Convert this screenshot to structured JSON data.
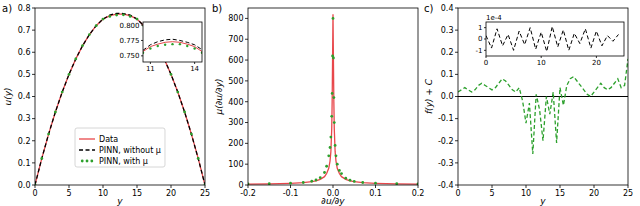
{
  "chart_data": [
    {
      "type": "line",
      "title": "a)",
      "x_label": "y",
      "y_label": "u(y)",
      "xlim": [
        0,
        25
      ],
      "xticks": [
        0,
        5,
        10,
        15,
        20,
        25
      ],
      "ylim": [
        0,
        0.8
      ],
      "yticks": [
        {
          "value": 0,
          "label": "0.0"
        },
        0.1,
        0.2,
        0.3,
        0.4,
        0.5,
        0.6,
        0.7,
        0.8
      ],
      "legend": "lower center",
      "x": [
        0,
        1,
        2,
        3,
        4,
        5,
        6,
        7,
        8,
        9,
        10,
        11,
        12,
        13,
        14,
        15,
        16,
        17,
        18,
        19,
        20,
        21,
        22,
        23,
        24,
        25
      ],
      "series": [
        {
          "name": "Data",
          "color": "#e8474b",
          "line_style": "solid",
          "values": [
            0,
            0.12,
            0.23,
            0.33,
            0.42,
            0.5,
            0.57,
            0.63,
            0.68,
            0.72,
            0.75,
            0.765,
            0.772,
            0.772,
            0.765,
            0.75,
            0.72,
            0.68,
            0.63,
            0.57,
            0.5,
            0.42,
            0.33,
            0.23,
            0.12,
            0
          ]
        },
        {
          "name": "PINN, without μ",
          "color": "#000000",
          "line_style": "dashed",
          "values": [
            0,
            0.12,
            0.23,
            0.33,
            0.42,
            0.5,
            0.57,
            0.63,
            0.68,
            0.72,
            0.75,
            0.768,
            0.776,
            0.775,
            0.768,
            0.75,
            0.72,
            0.68,
            0.63,
            0.57,
            0.5,
            0.42,
            0.33,
            0.23,
            0.12,
            0
          ]
        },
        {
          "name": "PINN, with μ",
          "color": "#2ca02c",
          "line_style": "none",
          "marker": "dot",
          "values": [
            0,
            0.12,
            0.23,
            0.33,
            0.42,
            0.5,
            0.57,
            0.63,
            0.68,
            0.72,
            0.75,
            0.762,
            0.768,
            0.769,
            0.762,
            0.75,
            0.72,
            0.68,
            0.63,
            0.57,
            0.5,
            0.42,
            0.33,
            0.23,
            0.12,
            0
          ]
        }
      ]
    },
    {
      "type": "line",
      "xlim": [
        10.5,
        14.5
      ],
      "xticks": [
        11,
        14
      ],
      "ylim": [
        0.74,
        0.805
      ],
      "yticks": [
        {
          "value": 0.75,
          "label": "0.750"
        },
        {
          "value": 0.775,
          "label": "0.775"
        },
        {
          "value": 0.8,
          "label": "0.800"
        }
      ],
      "x": [
        10.5,
        11,
        11.5,
        12,
        12.5,
        13,
        13.5,
        14,
        14.5
      ],
      "series": [
        {
          "color": "#e8474b",
          "line_style": "solid",
          "values": [
            0.757,
            0.765,
            0.769,
            0.772,
            0.773,
            0.772,
            0.769,
            0.765,
            0.757
          ]
        },
        {
          "color": "#000000",
          "line_style": "dashed",
          "values": [
            0.759,
            0.768,
            0.773,
            0.776,
            0.777,
            0.775,
            0.772,
            0.768,
            0.76
          ]
        },
        {
          "color": "#2ca02c",
          "line_style": "none",
          "marker": "dot",
          "values": [
            0.755,
            0.762,
            0.766,
            0.768,
            0.769,
            0.769,
            0.766,
            0.762,
            0.755
          ]
        }
      ]
    },
    {
      "type": "line",
      "title": "b)",
      "x_label": "∂u/∂y",
      "y_label": "μ(∂u/∂y)",
      "xlim": [
        -0.2,
        0.2
      ],
      "xticks": [
        -0.2,
        -0.1,
        {
          "value": 0,
          "label": "0.0"
        },
        0.1,
        0.2
      ],
      "ylim": [
        0,
        850
      ],
      "yticks": [
        0,
        100,
        200,
        300,
        400,
        500,
        600,
        700,
        800
      ],
      "x": [
        -0.2,
        -0.15,
        -0.1,
        -0.07,
        -0.05,
        -0.04,
        -0.03,
        -0.02,
        -0.015,
        -0.01,
        -0.007,
        -0.005,
        -0.003,
        -0.002,
        -0.001,
        0,
        0.001,
        0.002,
        0.003,
        0.005,
        0.007,
        0.01,
        0.015,
        0.02,
        0.03,
        0.04,
        0.05,
        0.07,
        0.1,
        0.15,
        0.2
      ],
      "series": [
        {
          "color": "#e8474b",
          "line_style": "solid",
          "values": [
            4,
            5,
            8,
            11,
            16,
            20,
            27,
            40,
            55,
            80,
            115,
            160,
            270,
            400,
            600,
            820,
            600,
            400,
            270,
            160,
            115,
            80,
            55,
            40,
            27,
            20,
            16,
            11,
            8,
            5,
            4
          ]
        },
        {
          "color": "#2ca02c",
          "line_style": "none",
          "marker": "dot",
          "values": [
            5,
            6,
            9,
            12,
            18,
            24,
            35,
            60,
            90,
            140,
            180,
            230,
            330,
            440,
            620,
            800,
            610,
            420,
            300,
            190,
            140,
            100,
            70,
            55,
            33,
            23,
            17,
            12,
            9,
            6,
            5
          ]
        }
      ]
    },
    {
      "type": "line",
      "title": "c)",
      "x_label": "y",
      "y_label": "f(y) + C",
      "xlim": [
        0,
        25
      ],
      "xticks": [
        0,
        5,
        10,
        15,
        20,
        25
      ],
      "ylim": [
        -0.4,
        0.4
      ],
      "yticks": [
        -0.4,
        -0.3,
        -0.2,
        -0.1,
        {
          "value": 0,
          "label": "0.0"
        },
        0.1,
        0.2,
        0.3,
        0.4
      ],
      "hline": 0,
      "x": [
        0,
        0.5,
        1,
        1.5,
        2,
        2.5,
        3,
        3.5,
        4,
        4.5,
        5,
        5.5,
        6,
        6.5,
        7,
        7.5,
        8,
        8.5,
        9,
        9.5,
        10,
        10.5,
        11,
        11.5,
        12,
        12.5,
        13,
        13.5,
        14,
        14.5,
        15,
        15.5,
        16,
        16.5,
        17,
        17.5,
        18,
        18.5,
        19,
        19.5,
        20,
        20.5,
        21,
        21.5,
        22,
        22.5,
        23,
        23.5,
        24,
        24.5,
        25
      ],
      "series": [
        {
          "color": "#2ca02c",
          "line_style": "dashed",
          "values": [
            0.02,
            0.03,
            0.04,
            0.03,
            0.02,
            0.03,
            0.05,
            0.06,
            0.05,
            0.04,
            0.03,
            0.04,
            0.06,
            0.08,
            0.07,
            0.05,
            0.03,
            0.02,
            0.04,
            -0.02,
            -0.12,
            -0.03,
            -0.26,
            0.01,
            -0.06,
            -0.2,
            0,
            -0.08,
            0.02,
            -0.21,
            0.04,
            -0.04,
            0.05,
            0.08,
            0.09,
            0.07,
            0.05,
            0.03,
            0.01,
            0,
            0.02,
            0.04,
            0.06,
            0.04,
            0.03,
            0.04,
            0.06,
            0.08,
            0.04,
            0.05,
            0.17
          ]
        }
      ]
    },
    {
      "type": "line",
      "y_offset_label": "1e-4",
      "xlim": [
        0,
        25
      ],
      "xticks": [
        0,
        10,
        20
      ],
      "ylim": [
        -1.5,
        1.5
      ],
      "yticks": [
        -1,
        0,
        1
      ],
      "x": [
        0,
        1,
        2,
        3,
        4,
        5,
        6,
        7,
        8,
        9,
        10,
        11,
        12,
        13,
        14,
        15,
        16,
        17,
        18,
        19,
        20,
        21,
        22,
        23,
        24
      ],
      "series": [
        {
          "color": "#000000",
          "line_style": "dashed",
          "values": [
            0.3,
            -0.8,
            0.9,
            -0.6,
            0.4,
            -1.0,
            0.7,
            -0.5,
            1.0,
            -0.9,
            0.6,
            -1.1,
            1.1,
            -0.7,
            0.8,
            -1.0,
            0.5,
            -0.4,
            0.9,
            -0.8,
            0.7,
            -0.6,
            0.3,
            -0.2,
            0.4
          ]
        }
      ]
    }
  ]
}
